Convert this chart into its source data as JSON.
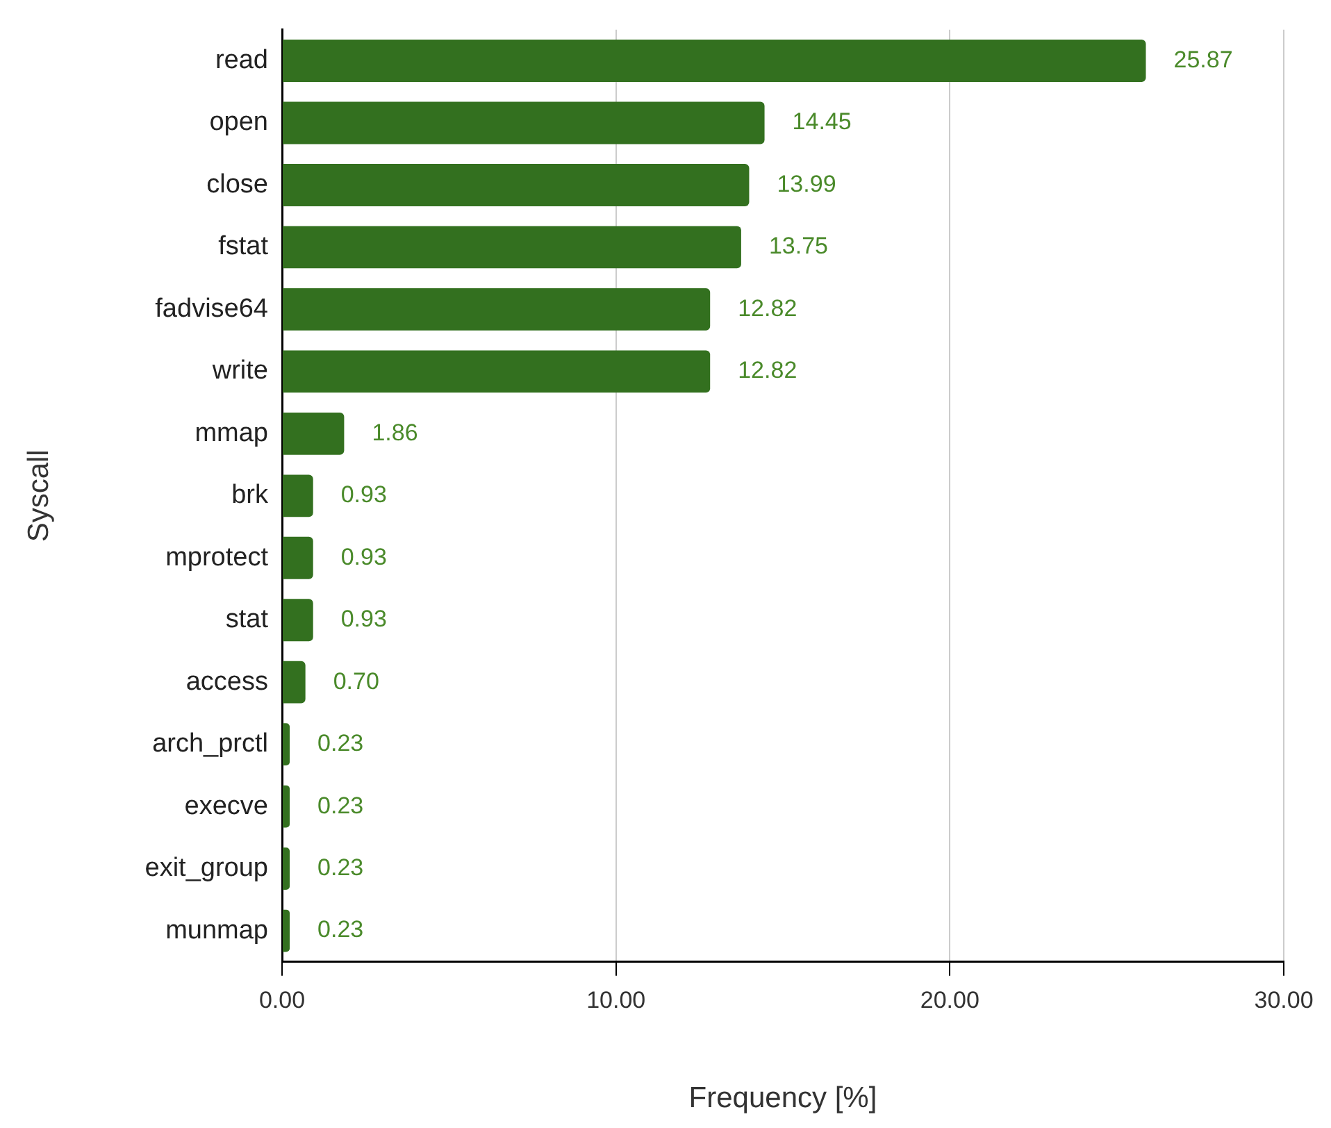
{
  "chart_data": {
    "type": "bar",
    "orientation": "horizontal",
    "xlabel": "Frequency [%]",
    "ylabel": "Syscall",
    "categories": [
      "read",
      "open",
      "close",
      "fstat",
      "fadvise64",
      "write",
      "mmap",
      "brk",
      "mprotect",
      "stat",
      "access",
      "arch_prctl",
      "execve",
      "exit_group",
      "munmap"
    ],
    "values": [
      25.87,
      14.45,
      13.99,
      13.75,
      12.82,
      12.82,
      1.86,
      0.93,
      0.93,
      0.93,
      0.7,
      0.23,
      0.23,
      0.23,
      0.23
    ],
    "value_labels": [
      "25.87",
      "14.45",
      "13.99",
      "13.75",
      "12.82",
      "12.82",
      "1.86",
      "0.93",
      "0.93",
      "0.93",
      "0.70",
      "0.23",
      "0.23",
      "0.23",
      "0.23"
    ],
    "color": "#33701f",
    "xlim": [
      0,
      30
    ],
    "xticks": [
      {
        "value": 0,
        "label": "0.00"
      },
      {
        "value": 10,
        "label": "10.00"
      },
      {
        "value": 20,
        "label": "20.00"
      },
      {
        "value": 30,
        "label": "30.00"
      }
    ],
    "grid": "x",
    "legend": false
  }
}
